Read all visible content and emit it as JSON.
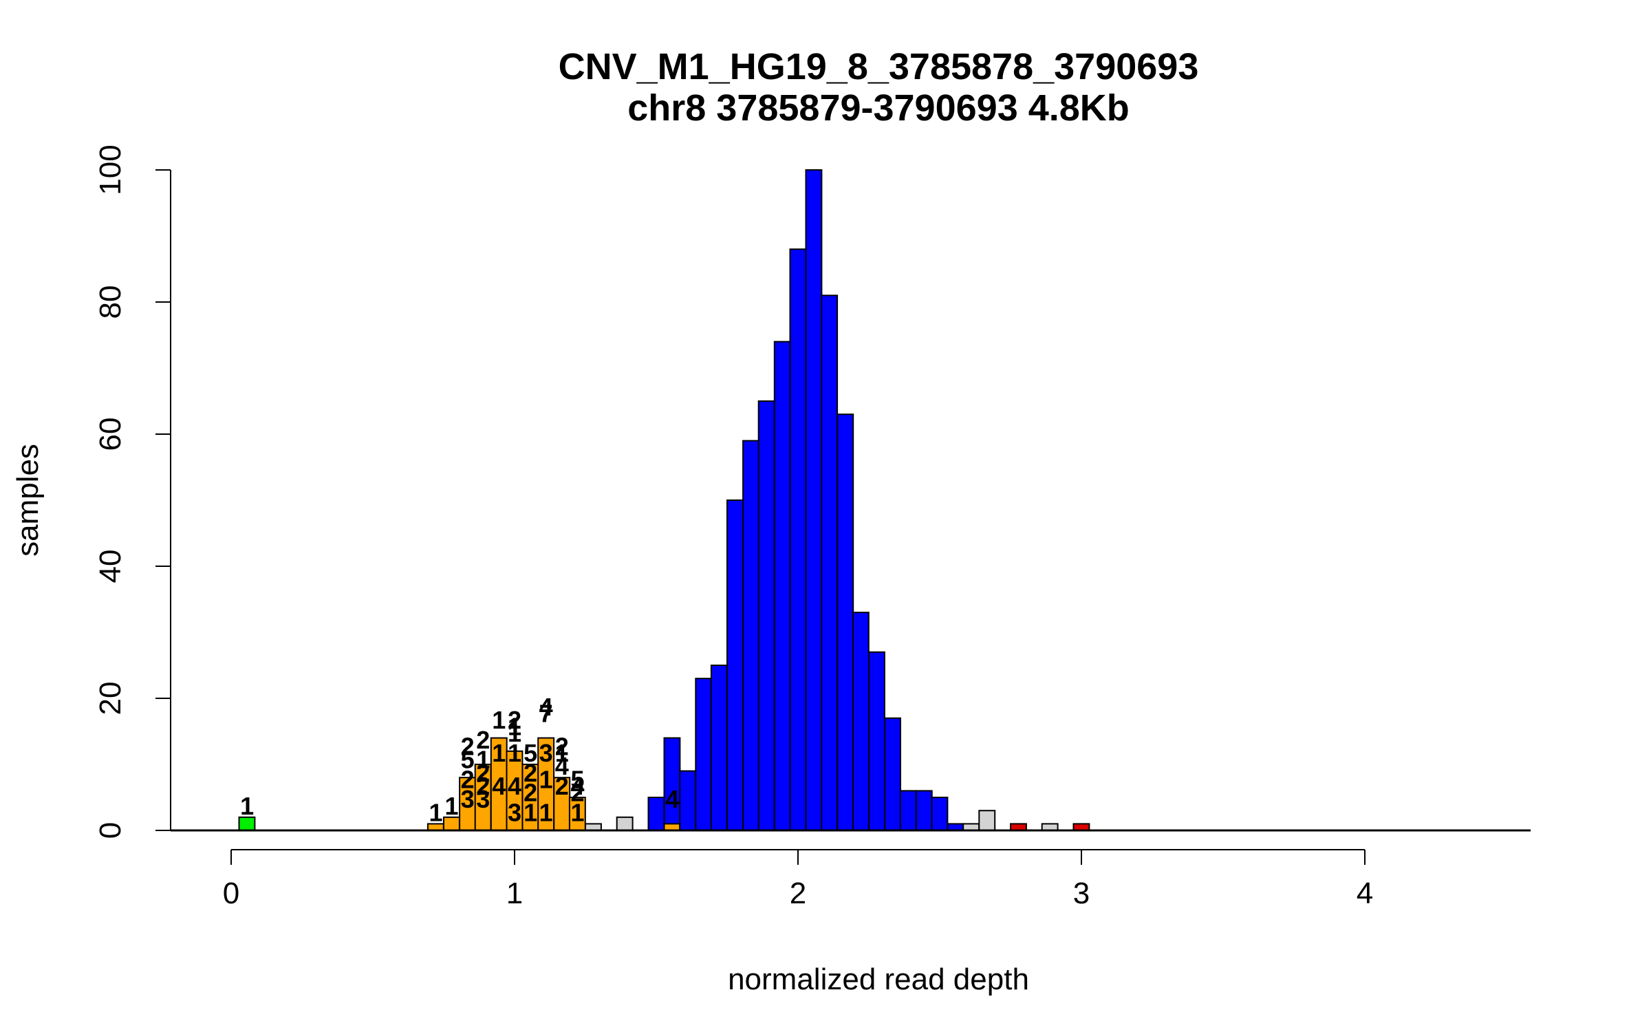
{
  "chart_data": {
    "type": "bar",
    "title": "CNV_M1_HG19_8_3785878_3790693",
    "subtitle": "chr8 3785879-3790693 4.8Kb",
    "xlabel": "normalized read depth",
    "ylabel": "samples",
    "xlim": [
      0,
      4.6
    ],
    "ylim": [
      0,
      100
    ],
    "x_ticks": [
      0,
      1,
      2,
      3,
      4
    ],
    "y_ticks": [
      0,
      20,
      40,
      60,
      80,
      100
    ],
    "bin_width": 0.0556,
    "colors": {
      "green": "#00ee00",
      "orange": "#ffa500",
      "blue": "#0000ff",
      "grey": "#d3d3d3",
      "red": "#dd0000",
      "border": "#000000"
    },
    "bars": [
      {
        "start": 0.028,
        "count": 2,
        "color": "green"
      },
      {
        "start": 0.694,
        "count": 1,
        "color": "orange"
      },
      {
        "start": 0.75,
        "count": 2,
        "color": "orange"
      },
      {
        "start": 0.806,
        "count": 8,
        "color": "orange"
      },
      {
        "start": 0.861,
        "count": 10,
        "color": "orange"
      },
      {
        "start": 0.917,
        "count": 14,
        "color": "orange"
      },
      {
        "start": 0.972,
        "count": 12,
        "color": "orange"
      },
      {
        "start": 1.028,
        "count": 10,
        "color": "orange"
      },
      {
        "start": 1.083,
        "count": 14,
        "color": "orange"
      },
      {
        "start": 1.139,
        "count": 8,
        "color": "orange"
      },
      {
        "start": 1.194,
        "count": 5,
        "color": "orange"
      },
      {
        "start": 1.25,
        "count": 1,
        "color": "grey"
      },
      {
        "start": 1.361,
        "count": 2,
        "color": "grey"
      },
      {
        "start": 1.472,
        "count": 5,
        "color": "blue"
      },
      {
        "start": 1.528,
        "count": 14,
        "color": "blue"
      },
      {
        "start": 1.528,
        "count": 1,
        "color": "orange"
      },
      {
        "start": 1.583,
        "count": 9,
        "color": "blue"
      },
      {
        "start": 1.639,
        "count": 23,
        "color": "blue"
      },
      {
        "start": 1.694,
        "count": 25,
        "color": "blue"
      },
      {
        "start": 1.75,
        "count": 50,
        "color": "blue"
      },
      {
        "start": 1.806,
        "count": 59,
        "color": "blue"
      },
      {
        "start": 1.861,
        "count": 65,
        "color": "blue"
      },
      {
        "start": 1.917,
        "count": 74,
        "color": "blue"
      },
      {
        "start": 1.972,
        "count": 88,
        "color": "blue"
      },
      {
        "start": 2.028,
        "count": 100,
        "color": "blue"
      },
      {
        "start": 2.083,
        "count": 81,
        "color": "blue"
      },
      {
        "start": 2.139,
        "count": 63,
        "color": "blue"
      },
      {
        "start": 2.194,
        "count": 33,
        "color": "blue"
      },
      {
        "start": 2.25,
        "count": 27,
        "color": "blue"
      },
      {
        "start": 2.306,
        "count": 17,
        "color": "blue"
      },
      {
        "start": 2.361,
        "count": 6,
        "color": "blue"
      },
      {
        "start": 2.417,
        "count": 6,
        "color": "blue"
      },
      {
        "start": 2.472,
        "count": 5,
        "color": "blue"
      },
      {
        "start": 2.528,
        "count": 1,
        "color": "blue"
      },
      {
        "start": 2.583,
        "count": 1,
        "color": "grey"
      },
      {
        "start": 2.639,
        "count": 3,
        "color": "grey"
      },
      {
        "start": 2.75,
        "count": 1,
        "color": "red"
      },
      {
        "start": 2.861,
        "count": 1,
        "color": "grey"
      },
      {
        "start": 2.972,
        "count": 1,
        "color": "red"
      }
    ],
    "count_labels": [
      {
        "x": 0.056,
        "y": 2,
        "text": "1"
      },
      {
        "x": 0.722,
        "y": 1,
        "text": "1"
      },
      {
        "x": 0.778,
        "y": 2,
        "text": "1"
      },
      {
        "x": 0.834,
        "y": 3,
        "text": "3"
      },
      {
        "x": 0.834,
        "y": 6,
        "text": "2"
      },
      {
        "x": 0.834,
        "y": 9,
        "text": "5"
      },
      {
        "x": 0.834,
        "y": 11,
        "text": "2"
      },
      {
        "x": 0.889,
        "y": 3,
        "text": "3"
      },
      {
        "x": 0.889,
        "y": 5,
        "text": "2"
      },
      {
        "x": 0.889,
        "y": 7,
        "text": "2"
      },
      {
        "x": 0.889,
        "y": 9,
        "text": "1"
      },
      {
        "x": 0.889,
        "y": 12,
        "text": "2"
      },
      {
        "x": 0.945,
        "y": 5,
        "text": "4"
      },
      {
        "x": 0.945,
        "y": 10,
        "text": "1"
      },
      {
        "x": 0.945,
        "y": 15,
        "text": "1"
      },
      {
        "x": 1.0,
        "y": 1,
        "text": "3"
      },
      {
        "x": 1.0,
        "y": 5,
        "text": "4"
      },
      {
        "x": 1.0,
        "y": 10,
        "text": "1"
      },
      {
        "x": 1.0,
        "y": 15,
        "text": "2"
      },
      {
        "x": 1.0,
        "y": 14,
        "text": "1"
      },
      {
        "x": 1.0,
        "y": 13,
        "text": "1"
      },
      {
        "x": 1.056,
        "y": 1,
        "text": "1"
      },
      {
        "x": 1.056,
        "y": 4,
        "text": "2"
      },
      {
        "x": 1.056,
        "y": 7,
        "text": "2"
      },
      {
        "x": 1.056,
        "y": 10,
        "text": "5"
      },
      {
        "x": 1.111,
        "y": 1,
        "text": "1"
      },
      {
        "x": 1.111,
        "y": 6,
        "text": "1"
      },
      {
        "x": 1.111,
        "y": 10,
        "text": "3"
      },
      {
        "x": 1.111,
        "y": 16,
        "text": "7"
      },
      {
        "x": 1.111,
        "y": 17,
        "text": "4"
      },
      {
        "x": 1.167,
        "y": 5,
        "text": "2"
      },
      {
        "x": 1.167,
        "y": 8,
        "text": "4"
      },
      {
        "x": 1.167,
        "y": 10,
        "text": "1"
      },
      {
        "x": 1.167,
        "y": 11,
        "text": "2"
      },
      {
        "x": 1.222,
        "y": 4,
        "text": "2"
      },
      {
        "x": 1.222,
        "y": 5,
        "text": "4"
      },
      {
        "x": 1.222,
        "y": 6,
        "text": "5"
      },
      {
        "x": 1.222,
        "y": 1,
        "text": "1"
      },
      {
        "x": 1.556,
        "y": 3,
        "text": "4"
      }
    ]
  }
}
